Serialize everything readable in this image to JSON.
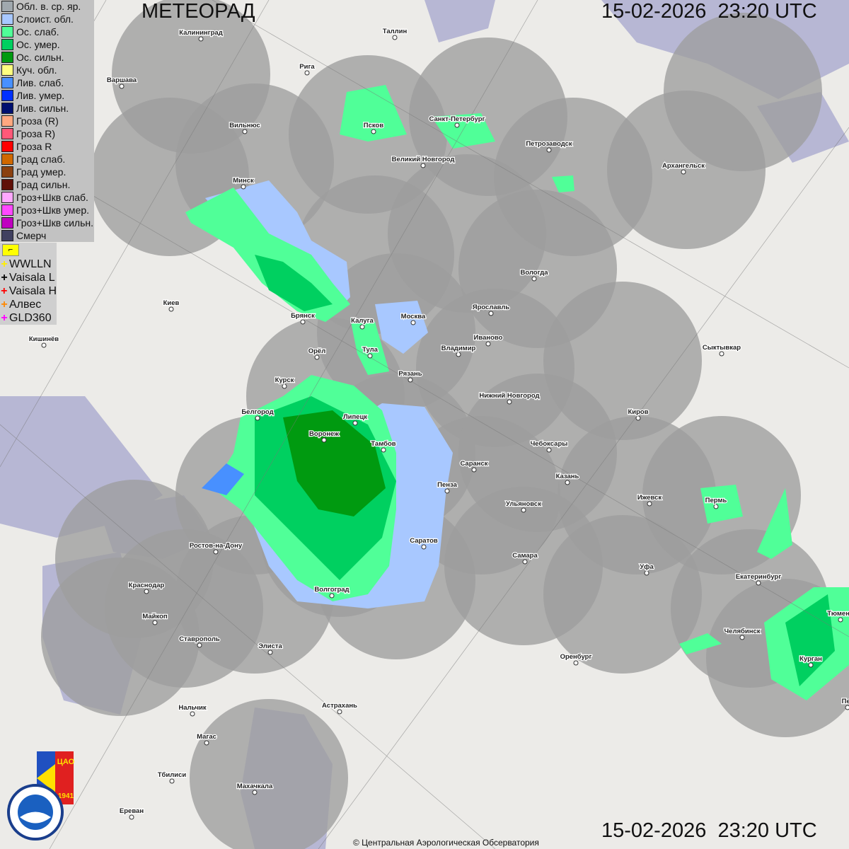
{
  "header": {
    "title": "МЕТЕОРАД",
    "timestamp": "15-02-2026  23:20 UTC"
  },
  "footer": {
    "timestamp": "15-02-2026  23:20 UTC",
    "copyright": "© Центральная Аэрологическая Обсерватория"
  },
  "legend": [
    {
      "label": "Обл. в. ср. яр.",
      "color": "#a0a8ae"
    },
    {
      "label": "Слоист. обл.",
      "color": "#a8c8ff"
    },
    {
      "label": "Ос. слаб.",
      "color": "#50ff98"
    },
    {
      "label": "Ос. умер.",
      "color": "#00d060"
    },
    {
      "label": "Ос. сильн.",
      "color": "#009a10"
    },
    {
      "label": "Куч. обл.",
      "color": "#ffff80"
    },
    {
      "label": "Лив. слаб.",
      "color": "#4890ff"
    },
    {
      "label": "Лив. умер.",
      "color": "#0030ff"
    },
    {
      "label": "Лив. сильн.",
      "color": "#001070"
    },
    {
      "label": "Гроза (R)",
      "color": "#ffa880"
    },
    {
      "label": "Гроза R)",
      "color": "#ff5878"
    },
    {
      "label": "Гроза R",
      "color": "#ff0000"
    },
    {
      "label": "Град слаб.",
      "color": "#d06800"
    },
    {
      "label": "Град умер.",
      "color": "#8a4010"
    },
    {
      "label": "Град сильн.",
      "color": "#601008"
    },
    {
      "label": "Гроз+Шкв слаб.",
      "color": "#ffa8ff"
    },
    {
      "label": "Гроз+Шкв умер.",
      "color": "#ff48ff"
    },
    {
      "label": "Гроз+Шкв сильн.",
      "color": "#c000c0"
    },
    {
      "label": "Смерч",
      "color": "#404060"
    }
  ],
  "lightning": {
    "flag_icon": "flag-icon",
    "sources": [
      {
        "label": "WWLLN",
        "color": "#ffee00"
      },
      {
        "label": "Vaisala L",
        "color": "#000000"
      },
      {
        "label": "Vaisala H",
        "color": "#ff0000"
      },
      {
        "label": "Алвес",
        "color": "#ff8800"
      },
      {
        "label": "GLD360",
        "color": "#ff00ff"
      }
    ]
  },
  "logos": {
    "cao": "ЦАО 1941",
    "roshydromet": "РОСГИДРОМЕТ ROSHYDROMET"
  },
  "cities": [
    "Калининград",
    "Таллин",
    "Рига",
    "Варшава",
    "Санкт-Петербург",
    "Псков",
    "Вильнюс",
    "Великий Новгород",
    "Петрозаводск",
    "Архангельск",
    "Минск",
    "Вологда",
    "Киев",
    "Брянск",
    "Москва",
    "Калуга",
    "Ярославль",
    "Иваново",
    "Кишинёв",
    "Орёл",
    "Тула",
    "Владимир",
    "Рязань",
    "Сыктывкар",
    "Курск",
    "Нижний Новгород",
    "Белгород",
    "Киров",
    "Липецк",
    "Воронеж",
    "Тамбов",
    "Чебоксары",
    "Саранск",
    "Казань",
    "Пенза",
    "Ижевск",
    "Пермь",
    "Ульяновск",
    "Ростов-на-Дону",
    "Саратов",
    "Самара",
    "Уфа",
    "Екатеринбург",
    "Краснодар",
    "Волгоград",
    "Тюмень",
    "Майкоп",
    "Челябинск",
    "Ставрополь",
    "Элиста",
    "Оренбург",
    "Курган",
    "Нальчик",
    "Астрахань",
    "Магас",
    "Тбилиси",
    "Махачкала",
    "Ереван",
    "Пет"
  ]
}
